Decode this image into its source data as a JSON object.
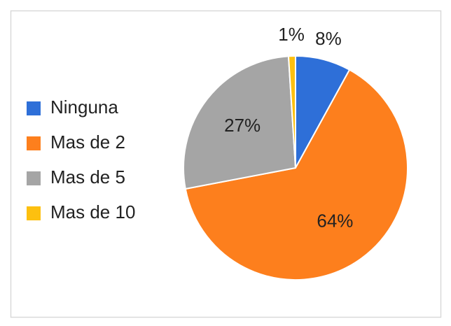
{
  "chart_data": {
    "type": "pie",
    "categories": [
      "Ninguna",
      "Mas de 2",
      "Mas de 5",
      "Mas de 10"
    ],
    "values": [
      8,
      64,
      27,
      1
    ],
    "value_labels": [
      "8%",
      "64%",
      "27%",
      "1%"
    ],
    "colors": [
      "#2e6fd8",
      "#fd7f1d",
      "#a5a5a5",
      "#fdc00f"
    ],
    "legend": "left"
  }
}
